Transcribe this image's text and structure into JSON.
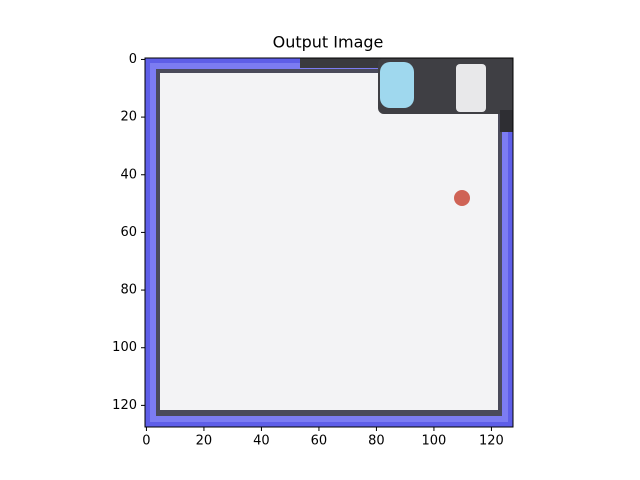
{
  "chart_data": {
    "type": "image",
    "title": "Output Image",
    "xlim": [
      -0.5,
      127.5
    ],
    "ylim": [
      127.5,
      -0.5
    ],
    "xticks": [
      0,
      20,
      40,
      60,
      80,
      100,
      120
    ],
    "yticks": [
      0,
      20,
      40,
      60,
      80,
      100,
      120
    ]
  }
}
